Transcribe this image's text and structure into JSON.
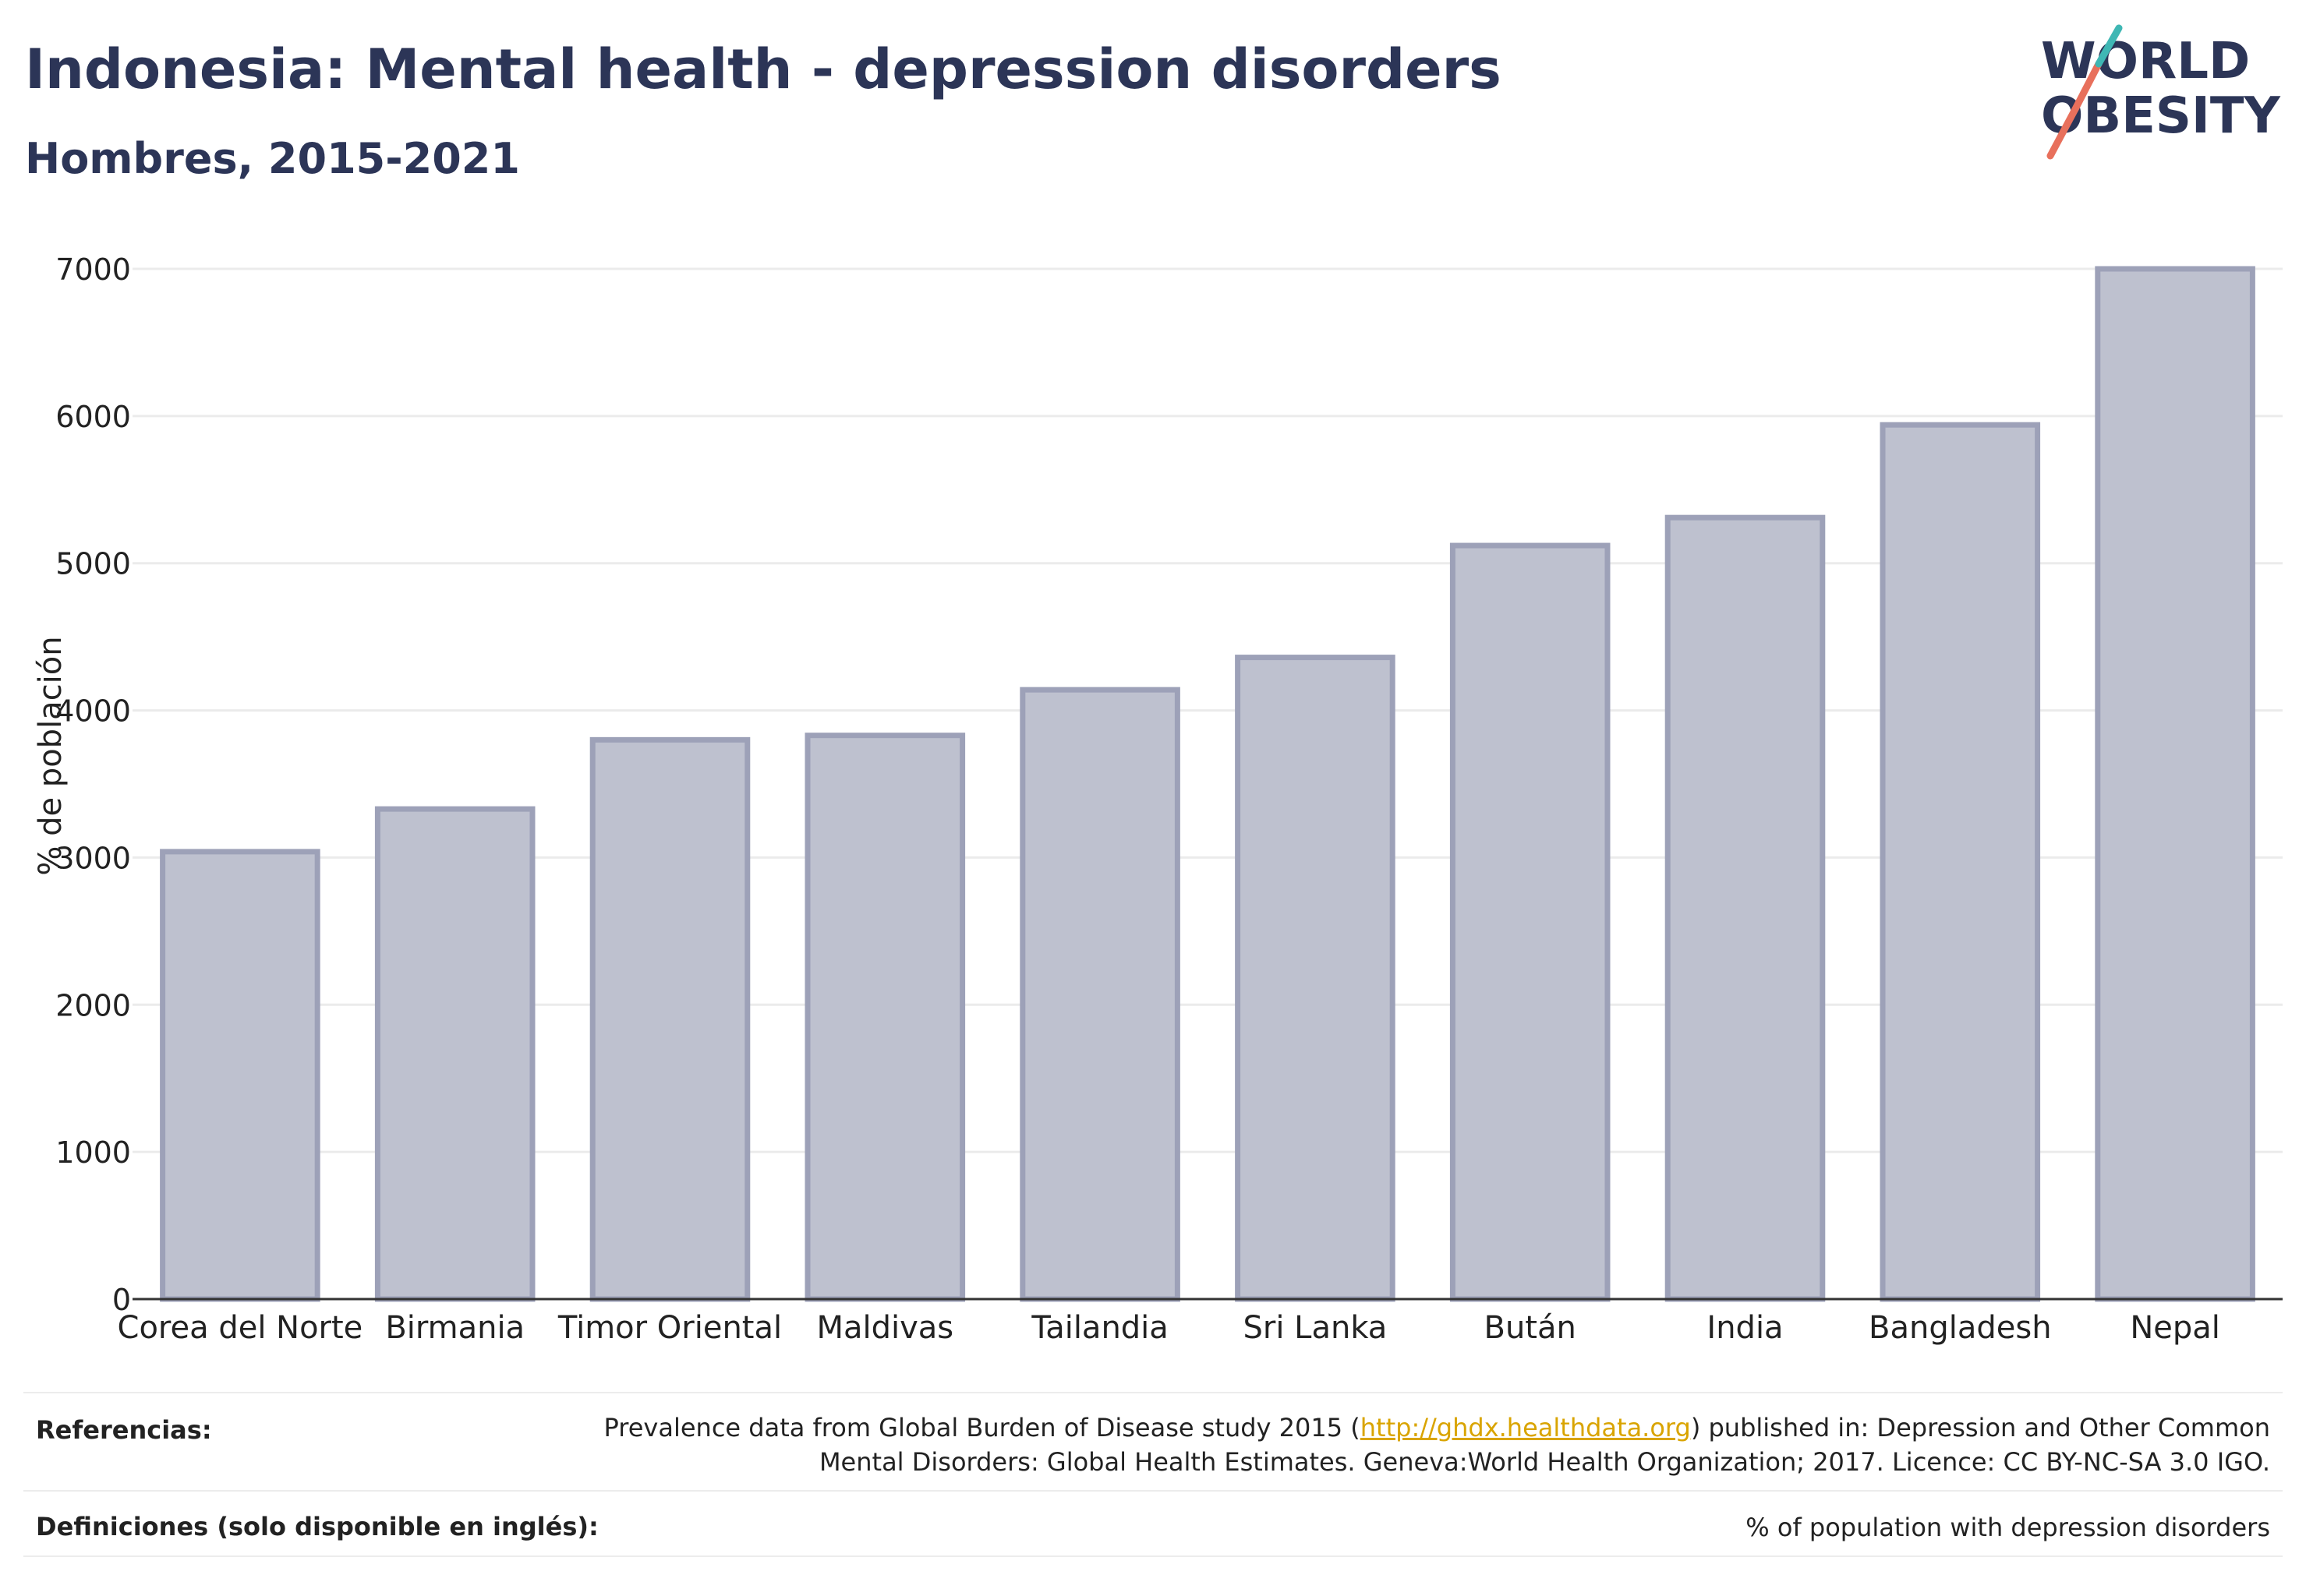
{
  "header": {
    "title": "Indonesia: Mental health - depression disorders",
    "subtitle": "Hombres, 2015-2021"
  },
  "logo": {
    "line1": "WORLD",
    "line2": "OBESITY"
  },
  "chart_data": {
    "type": "bar",
    "categories": [
      "Corea del Norte",
      "Birmania",
      "Timor Oriental",
      "Maldivas",
      "Tailandia",
      "Sri Lanka",
      "Bután",
      "India",
      "Bangladesh",
      "Nepal"
    ],
    "values": [
      3040,
      3330,
      3800,
      3830,
      4140,
      4360,
      5120,
      5310,
      5940,
      7000
    ],
    "ylabel": "% de población",
    "xlabel": "",
    "ylim": [
      0,
      7000
    ],
    "yticks": [
      0,
      1000,
      2000,
      3000,
      4000,
      5000,
      6000,
      7000
    ],
    "grid": true,
    "colors": {
      "bar_fill": "#bec1cf",
      "bar_stroke": "#9da1b8",
      "grid": "#ebebeb",
      "axis": "#333333"
    }
  },
  "footer": {
    "references_label": "Referencias:",
    "references_text_before": "Prevalence data from Global Burden of Disease study 2015 (",
    "references_link": "http://ghdx.healthdata.org",
    "references_text_after": ") published in: Depression and Other Common",
    "references_text_line2": "Mental Disorders: Global Health Estimates. Geneva:World Health Organization; 2017. Licence: CC BY-NC-SA 3.0 IGO.",
    "definitions_label": "Definiciones (solo disponible en inglés):",
    "definitions_text": "% of population with depression disorders"
  }
}
